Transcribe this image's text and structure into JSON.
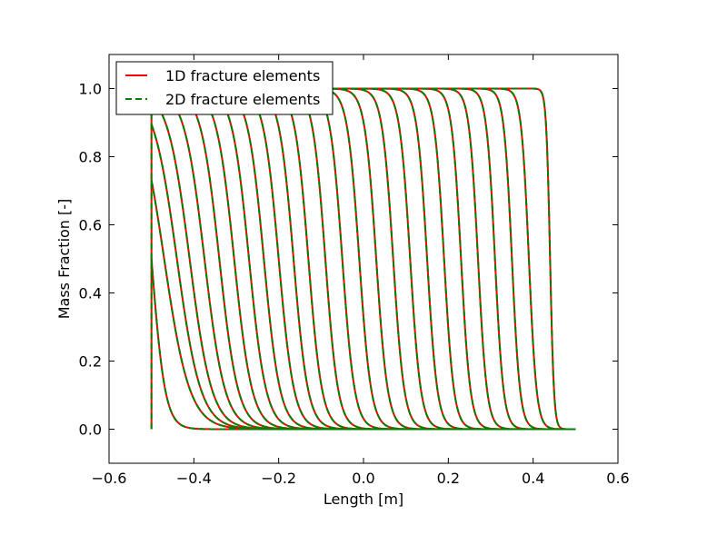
{
  "chart_data": {
    "type": "line",
    "xlabel": "Length [m]",
    "ylabel": "Mass Fraction [-]",
    "xlim": [
      -0.6,
      0.6
    ],
    "ylim": [
      -0.1,
      1.1
    ],
    "xticks": [
      -0.6,
      -0.4,
      -0.2,
      0.0,
      0.2,
      0.4,
      0.6
    ],
    "xtick_labels": [
      "−0.6",
      "−0.4",
      "−0.2",
      "0.0",
      "0.2",
      "0.4",
      "0.6"
    ],
    "yticks": [
      0.0,
      0.2,
      0.4,
      0.6,
      0.8,
      1.0
    ],
    "ytick_labels": [
      "0.0",
      "0.2",
      "0.4",
      "0.6",
      "0.8",
      "1.0"
    ],
    "grid": false,
    "legend_placement": "top-left",
    "x_domain": [
      -0.5,
      0.5
    ],
    "front_positions": [
      -0.5,
      -0.47,
      -0.44,
      -0.41,
      -0.375,
      -0.34,
      -0.305,
      -0.27,
      -0.235,
      -0.2,
      -0.165,
      -0.13,
      -0.09,
      -0.05,
      -0.01,
      0.03,
      0.07,
      0.11,
      0.15,
      0.19,
      0.23,
      0.27,
      0.31,
      0.35,
      0.39,
      0.44
    ],
    "front_widths": [
      0.016,
      0.03,
      0.028,
      0.026,
      0.024,
      0.022,
      0.021,
      0.02,
      0.019,
      0.018,
      0.017,
      0.016,
      0.015,
      0.0145,
      0.014,
      0.0135,
      0.013,
      0.0125,
      0.012,
      0.0115,
      0.011,
      0.0105,
      0.01,
      0.0095,
      0.009,
      0.0045
    ],
    "series": [
      {
        "name": "1D fracture elements",
        "color": "#ff0000",
        "style": "solid"
      },
      {
        "name": "2D fracture elements",
        "color": "#008000",
        "style": "dashed"
      }
    ]
  }
}
